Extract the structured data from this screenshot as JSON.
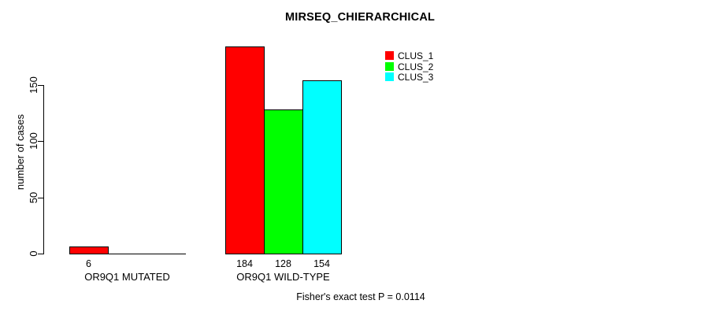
{
  "page": {
    "background": "#ffffff",
    "text_color": "#000000"
  },
  "chart_data": {
    "type": "bar",
    "title": "MIRSEQ_CHIERARCHICAL",
    "xlabel": "",
    "ylabel": "number of cases",
    "categories": [
      "OR9Q1 MUTATED",
      "OR9Q1 WILD-TYPE"
    ],
    "series": [
      {
        "name": "CLUS_1",
        "color": "#ff0000",
        "values": [
          6,
          184
        ]
      },
      {
        "name": "CLUS_2",
        "color": "#00ff00",
        "values": [
          0,
          128
        ]
      },
      {
        "name": "CLUS_3",
        "color": "#00ffff",
        "values": [
          0,
          154
        ]
      }
    ],
    "bar_value_labels": [
      [
        "6",
        "",
        ""
      ],
      [
        "184",
        "128",
        "154"
      ]
    ],
    "yticks": [
      0,
      50,
      100,
      150
    ],
    "ylim": [
      0,
      150
    ],
    "grid": false,
    "legend": {
      "position": "top-right",
      "entries": [
        "CLUS_1",
        "CLUS_2",
        "CLUS_3"
      ]
    },
    "annotation": "Fisher's exact test P = 0.0114",
    "bar_border_color": "#000000",
    "axis_color": "#000000"
  }
}
